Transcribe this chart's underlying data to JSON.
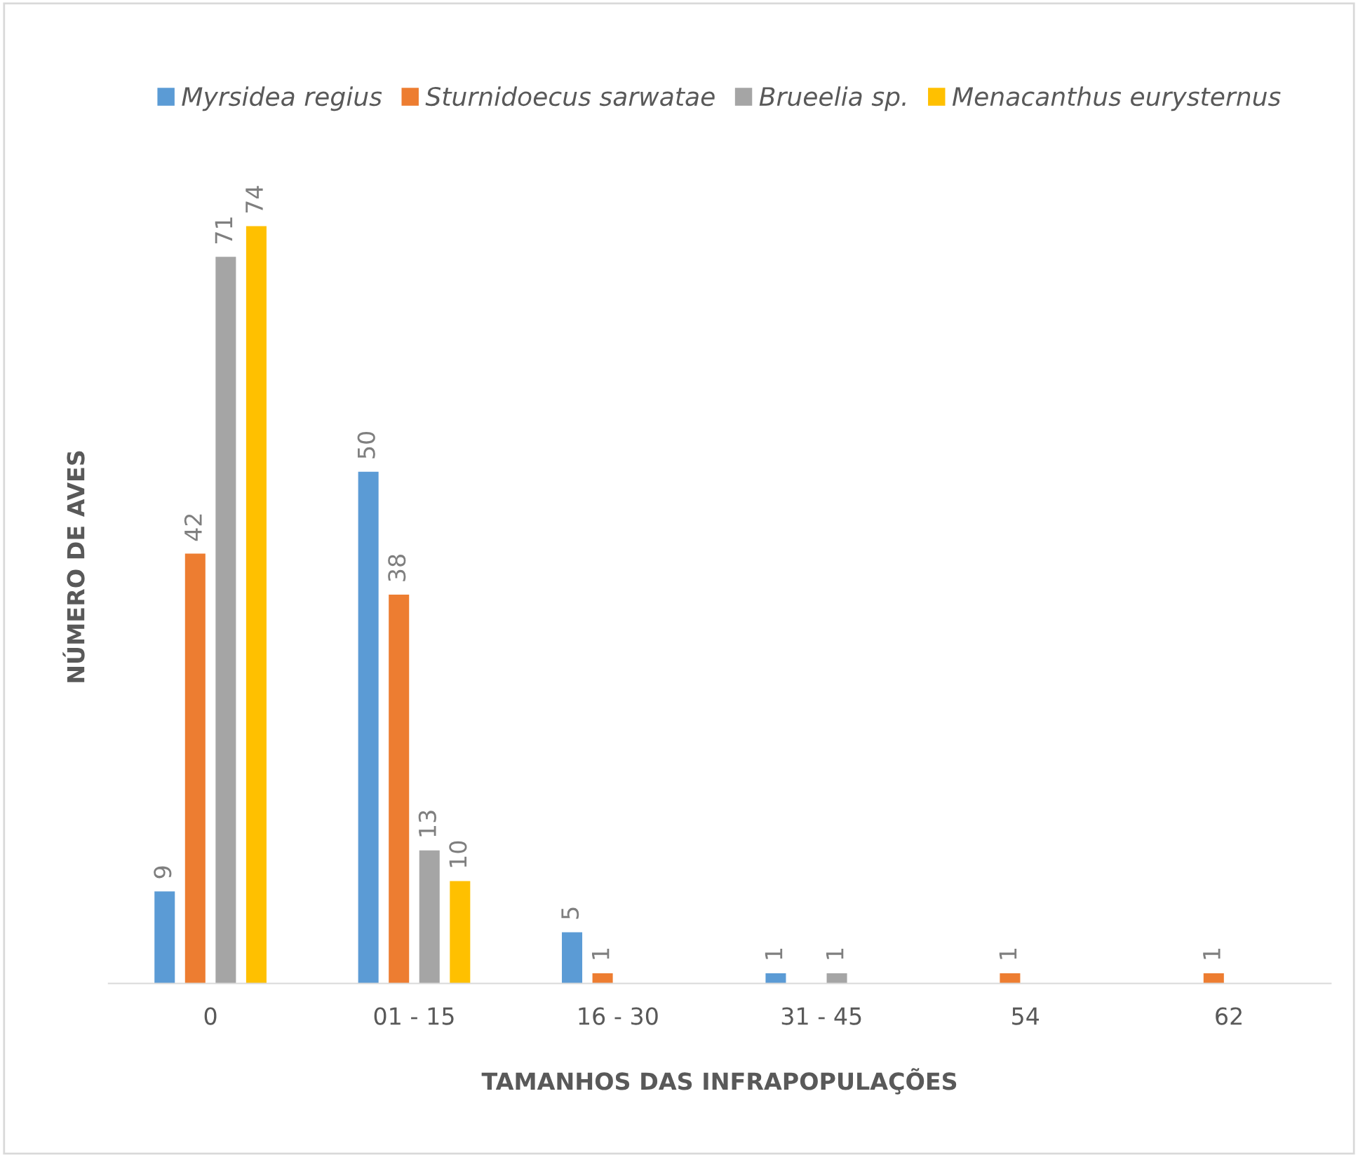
{
  "chart_data": {
    "type": "bar",
    "xlabel": "TAMANHOS DAS INFRAPOPULAÇÕES",
    "ylabel": "NÚMERO DE AVES",
    "categories": [
      "0",
      "01 - 15",
      "16 - 30",
      "31 - 45",
      "54",
      "62"
    ],
    "series": [
      {
        "name": "Myrsidea regius",
        "color": "#5b9bd5",
        "values": [
          9,
          50,
          5,
          1,
          null,
          null
        ]
      },
      {
        "name": "Sturnidoecus sarwatae",
        "color": "#ed7d31",
        "values": [
          42,
          38,
          1,
          null,
          1,
          1
        ]
      },
      {
        "name": "Brueelia sp.",
        "color": "#a5a5a5",
        "values": [
          71,
          13,
          null,
          1,
          null,
          null
        ]
      },
      {
        "name": "Menacanthus eurysternus",
        "color": "#ffc000",
        "values": [
          74,
          10,
          null,
          null,
          null,
          null
        ]
      }
    ],
    "data_labels": true,
    "legend": "top",
    "grid": false,
    "tick_labels": "x"
  }
}
